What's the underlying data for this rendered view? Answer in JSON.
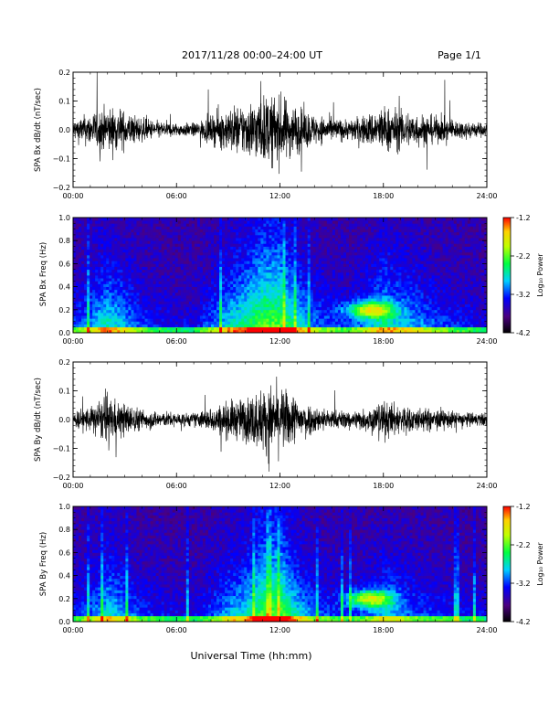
{
  "header": {
    "title": "2017/11/28   00:00–24:00 UT",
    "page": "Page 1/1"
  },
  "colorbar": {
    "label": "Log₁₀ Power",
    "ticks": [
      "-1.2",
      "-2.2",
      "-3.2",
      "-4.2"
    ],
    "colors": [
      "#000000",
      "#4b007f",
      "#0000ff",
      "#00d0ff",
      "#00ff40",
      "#c0ff00",
      "#ffd000",
      "#ff0000"
    ]
  },
  "xaxis": {
    "label": "Universal Time (hh:mm)",
    "ticks": [
      "00:00",
      "06:00",
      "12:00",
      "18:00",
      "24:00"
    ]
  },
  "chart_data": [
    {
      "type": "line",
      "ylabel": "SPA Bx dB/dt (nT/sec)",
      "ylim": [
        -0.2,
        0.2
      ],
      "yticks": [
        "0.2",
        "0.1",
        "0.0",
        "−0.1",
        "−0.2"
      ],
      "xlim_hours": [
        0,
        24
      ],
      "activity_hours": [
        0,
        1,
        2,
        3,
        4,
        5,
        6,
        7,
        8,
        9,
        10,
        11,
        12,
        13,
        14,
        15,
        16,
        17,
        18,
        19,
        20,
        21,
        22,
        23,
        24
      ],
      "amplitude_envelope": [
        0.06,
        0.1,
        0.14,
        0.11,
        0.07,
        0.05,
        0.04,
        0.04,
        0.08,
        0.13,
        0.16,
        0.2,
        0.2,
        0.14,
        0.09,
        0.07,
        0.06,
        0.09,
        0.14,
        0.12,
        0.1,
        0.08,
        0.06,
        0.05,
        0.04
      ],
      "color": "#000000"
    },
    {
      "type": "heatmap",
      "ylabel": "SPA Bx Freq (Hz)",
      "ylim": [
        0.0,
        1.0
      ],
      "yticks": [
        "1.0",
        "0.8",
        "0.6",
        "0.4",
        "0.2",
        "0.0"
      ],
      "clim": [
        -4.2,
        -1.2
      ]
    },
    {
      "type": "line",
      "ylabel": "SPA By dB/dt (nT/sec)",
      "ylim": [
        -0.2,
        0.2
      ],
      "yticks": [
        "0.2",
        "0.1",
        "0.0",
        "−0.1",
        "−0.2"
      ],
      "xlim_hours": [
        0,
        24
      ],
      "activity_hours": [
        0,
        1,
        2,
        3,
        4,
        5,
        6,
        7,
        8,
        9,
        10,
        11,
        12,
        13,
        14,
        15,
        16,
        17,
        18,
        19,
        20,
        21,
        22,
        23,
        24
      ],
      "amplitude_envelope": [
        0.05,
        0.08,
        0.13,
        0.1,
        0.06,
        0.05,
        0.04,
        0.04,
        0.07,
        0.11,
        0.13,
        0.19,
        0.2,
        0.13,
        0.08,
        0.06,
        0.05,
        0.07,
        0.11,
        0.09,
        0.07,
        0.06,
        0.05,
        0.04,
        0.04
      ],
      "color": "#000000"
    },
    {
      "type": "heatmap",
      "ylabel": "SPA By Freq (Hz)",
      "ylim": [
        0.0,
        1.0
      ],
      "yticks": [
        "1.0",
        "0.8",
        "0.6",
        "0.4",
        "0.2",
        "0.0"
      ],
      "clim": [
        -4.2,
        -1.2
      ]
    }
  ]
}
